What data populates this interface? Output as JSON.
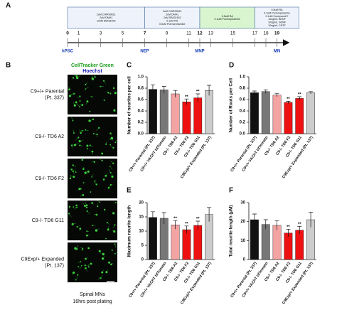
{
  "panel_labels": [
    "A",
    "B",
    "C",
    "D",
    "E",
    "F"
  ],
  "timeline": {
    "days": [
      0,
      1,
      3,
      5,
      7,
      9,
      11,
      12,
      13,
      15,
      17,
      18,
      19
    ],
    "stages": [
      {
        "label": "hPSC",
        "day": 0
      },
      {
        "label": "NEP",
        "day": 7
      },
      {
        "label": "MNP",
        "day": 12
      },
      {
        "label": "MN",
        "day": 19
      }
    ],
    "boxes": [
      {
        "from": 0,
        "to": 7,
        "color": "#eef3fb",
        "lines": [
          "2uM CHIR99021",
          "2uM DMH1",
          "10uM SB431542"
        ]
      },
      {
        "from": 7,
        "to": 12,
        "color": "#eef3fb",
        "lines": [
          "3uM CHIR99021",
          "2uM DMH1",
          "2uM SB431542",
          "0.1uM RA",
          "0.5uM Purmorphamine"
        ]
      },
      {
        "from": 12,
        "to": 17,
        "color": "#d9f5d0",
        "lines": [
          "0.5uM RA",
          "0.1uM Purmorphamine"
        ]
      },
      {
        "from": 17,
        "to": 21,
        "color": "#eef3fb",
        "lines": [
          "0.5uM RA",
          "0.1uM Purmorphamine",
          "0.1uM Compound E",
          "10ng/mL BDNF",
          "10ng/mL GDNF",
          "10ng/mL CNTF"
        ]
      }
    ]
  },
  "images": {
    "header": [
      "CellTracker Green",
      "Hoechst"
    ],
    "rows": [
      [
        "C9+/+ Parental",
        "(Pt. 337)"
      ],
      [
        "C9-/- TD6 A2"
      ],
      [
        "C9-/- TD6 F2"
      ],
      [
        "C9-/- TD6 G11"
      ],
      [
        "C9Exp/+ Expanded",
        "(Pt. 137)"
      ]
    ],
    "caption": [
      "Spinal MNs",
      "16hrs post plating"
    ]
  },
  "chart_data": [
    {
      "type": "bar",
      "ylabel": "Number of neurites per cell",
      "categories": [
        "C9+/+ Parental (Pt. 337)",
        "C9+/+ VAChT tdTomato",
        "C9-/- TD6 A2",
        "C9-/- TD6 F2",
        "C9-/- TD6 G11",
        "C9Exp/+ Expanded (Pt. 137)"
      ],
      "values": [
        0.78,
        0.77,
        0.7,
        0.56,
        0.63,
        0.76
      ],
      "errors": [
        0.08,
        0.06,
        0.06,
        0.05,
        0.07,
        0.09
      ],
      "colors": [
        "#111111",
        "#777777",
        "#f4a3a3",
        "#ee1111",
        "#ee1111",
        "#cccccc"
      ],
      "significance": [
        null,
        null,
        null,
        "**",
        "**",
        null
      ],
      "ylim": [
        0,
        1.0
      ],
      "yticks": [
        {
          "value": 0,
          "label": "0.0"
        },
        0.2,
        0.4,
        0.6,
        0.8,
        {
          "value": 1,
          "label": "1.0"
        }
      ]
    },
    {
      "type": "bar",
      "ylabel": "Number of Roots per Cell",
      "categories": [
        "C9+/+ Parental (Pt. 337)",
        "C9+/+ VAChT tdTomato",
        "C9-/- TD6 A2",
        "C9-/- TD6 F2",
        "C9-/- TD6 G11",
        "C9Exp/+ Expanded (Pt. 137)"
      ],
      "values": [
        0.72,
        0.74,
        0.68,
        0.55,
        0.62,
        0.72
      ],
      "errors": [
        0.03,
        0.03,
        0.03,
        0.02,
        0.03,
        0.02
      ],
      "colors": [
        "#111111",
        "#777777",
        "#f4a3a3",
        "#ee1111",
        "#ee1111",
        "#cccccc"
      ],
      "significance": [
        null,
        null,
        null,
        "**",
        "**",
        null
      ],
      "ylim": [
        0,
        1.0
      ],
      "yticks": [
        {
          "value": 0,
          "label": "0.0"
        },
        0.2,
        0.4,
        0.6,
        0.8,
        {
          "value": 1,
          "label": "1.0"
        }
      ]
    },
    {
      "type": "bar",
      "ylabel": "Maximum neurite length",
      "categories": [
        "C9+/+ Parental (Pt. 337)",
        "C9+/+ VAChT tdTomato",
        "C9-/- TD6 A2",
        "C9-/- TD6 F2",
        "C9-/- TD6 G11",
        "C9Exp/+ Expanded (Pt. 137)"
      ],
      "values": [
        14.8,
        14.5,
        12.2,
        10.5,
        12.0,
        15.8
      ],
      "errors": [
        2.0,
        2.0,
        1.5,
        1.3,
        1.5,
        2.5
      ],
      "colors": [
        "#111111",
        "#777777",
        "#f4a3a3",
        "#ee1111",
        "#ee1111",
        "#cccccc"
      ],
      "significance": [
        null,
        null,
        "**",
        "**",
        "**",
        null
      ],
      "ylim": [
        0,
        20
      ],
      "yticks": [
        0,
        5,
        10,
        15,
        20
      ]
    },
    {
      "type": "bar",
      "ylabel": "Total neurite length (µM)",
      "categories": [
        "C9+/+ Parental (Pt. 337)",
        "C9+/+ VAChT tdTomato",
        "C9-/- TD6 A2",
        "C9-/- TD6 F2",
        "C9-/- TD6 G11",
        "C9Exp/+ Expanded (Pt. 137)"
      ],
      "values": [
        21,
        18.5,
        18,
        14,
        15.5,
        21
      ],
      "errors": [
        3,
        2.5,
        2.5,
        2,
        2,
        4
      ],
      "colors": [
        "#111111",
        "#777777",
        "#f4a3a3",
        "#ee1111",
        "#ee1111",
        "#cccccc"
      ],
      "significance": [
        null,
        null,
        null,
        "**",
        "**",
        null
      ],
      "ylim": [
        0,
        30
      ],
      "yticks": [
        0,
        10,
        20,
        30
      ]
    }
  ]
}
